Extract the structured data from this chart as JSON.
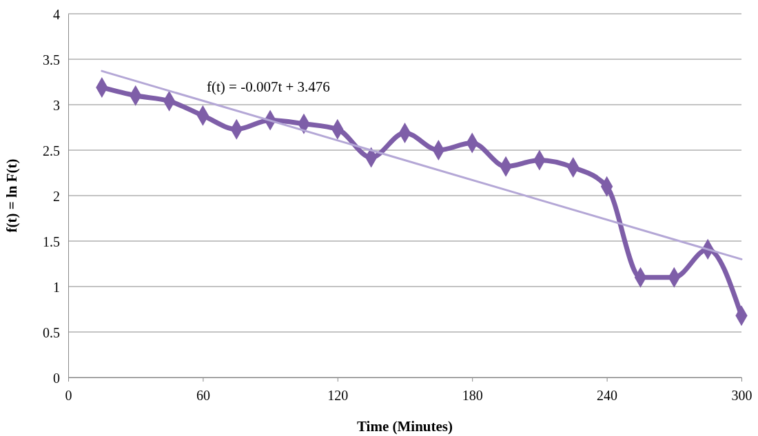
{
  "chart_data": {
    "type": "line",
    "xlabel": "Time (Minutes)",
    "ylabel": "f(t) = ln F(t)",
    "xlim": [
      0,
      300
    ],
    "xticks": [
      0,
      60,
      120,
      180,
      240,
      300
    ],
    "ylim": [
      0,
      4
    ],
    "yticks": [
      0,
      0.5,
      1,
      1.5,
      2,
      2.5,
      3,
      3.5,
      4
    ],
    "grid": "y",
    "annotations": [
      "f(t) = -0.007t + 3.476"
    ],
    "series": [
      {
        "color": "#7e5ea8",
        "marker": "diamond",
        "x": [
          15,
          30,
          45,
          60,
          75,
          90,
          105,
          120,
          135,
          150,
          165,
          180,
          195,
          210,
          225,
          240,
          255,
          270,
          285,
          300
        ],
        "values": [
          3.19,
          3.1,
          3.04,
          2.88,
          2.73,
          2.83,
          2.79,
          2.73,
          2.42,
          2.69,
          2.5,
          2.58,
          2.32,
          2.39,
          2.31,
          2.1,
          1.1,
          1.1,
          1.41,
          0.68
        ]
      },
      {
        "type": "line",
        "color": "#b4a7d6",
        "marker": "none",
        "x": [
          15,
          300
        ],
        "values": [
          3.37,
          1.3
        ]
      }
    ]
  }
}
